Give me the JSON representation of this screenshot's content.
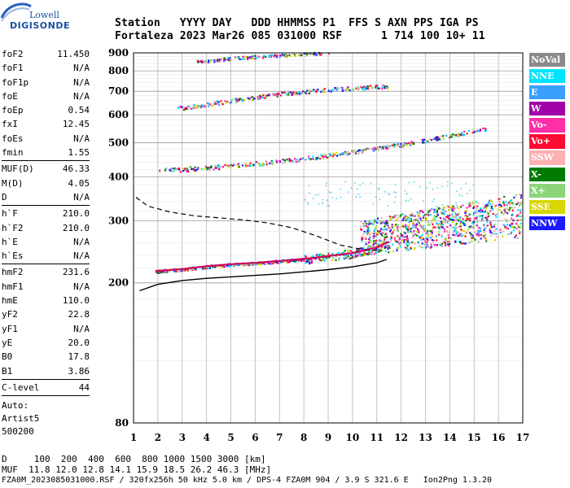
{
  "logo": {
    "brand_top": "Lowell",
    "brand_bottom": "DIGISONDE"
  },
  "header": {
    "line1": "Station   YYYY DAY   DDD HHMMSS P1  FFS S AXN PPS IGA PS",
    "line2": "Fortaleza 2023 Mar26 085 031000 RSF      1 714 100 10+ 11"
  },
  "params": [
    {
      "k": "foF2",
      "v": "11.450"
    },
    {
      "k": "foF1",
      "v": "N/A"
    },
    {
      "k": "foF1p",
      "v": "N/A"
    },
    {
      "k": "foE",
      "v": "N/A"
    },
    {
      "k": "foEp",
      "v": "0.54"
    },
    {
      "k": "fxI",
      "v": "12.45"
    },
    {
      "k": "foEs",
      "v": "N/A"
    },
    {
      "k": "fmin",
      "v": "1.55"
    }
  ],
  "params2": [
    {
      "k": "MUF(D)",
      "v": "46.33"
    },
    {
      "k": "M(D)",
      "v": "4.05"
    },
    {
      "k": "D",
      "v": "N/A"
    }
  ],
  "params3": [
    {
      "k": "h`F",
      "v": "210.0"
    },
    {
      "k": "h`F2",
      "v": "210.0"
    },
    {
      "k": "h`E",
      "v": "N/A"
    },
    {
      "k": "h`Es",
      "v": "N/A"
    }
  ],
  "params4": [
    {
      "k": "hmF2",
      "v": "231.6"
    },
    {
      "k": "hmF1",
      "v": "N/A"
    },
    {
      "k": "hmE",
      "v": "110.0"
    },
    {
      "k": "yF2",
      "v": "22.8"
    },
    {
      "k": "yF1",
      "v": "N/A"
    },
    {
      "k": "yE",
      "v": "20.0"
    },
    {
      "k": "B0",
      "v": "17.8"
    },
    {
      "k": "B1",
      "v": "3.86"
    }
  ],
  "params5": [
    {
      "k": "C-level",
      "v": "44"
    }
  ],
  "auto": [
    "Auto:",
    "Artist5",
    "500200"
  ],
  "legend": [
    {
      "label": "NoVal",
      "bg": "#8a8a8a",
      "fg": "#ffffff"
    },
    {
      "label": "NNE",
      "bg": "#00e5ff",
      "fg": "#ffffff"
    },
    {
      "label": "E",
      "bg": "#3aa0ff",
      "fg": "#ffffff"
    },
    {
      "label": "W",
      "bg": "#a000a8",
      "fg": "#ffffff"
    },
    {
      "label": "Vo-",
      "bg": "#ff2fa8",
      "fg": "#ffffff"
    },
    {
      "label": "Vo+",
      "bg": "#ff0a32",
      "fg": "#ffffff"
    },
    {
      "label": "SSW",
      "bg": "#ffb0b0",
      "fg": "#ffffff"
    },
    {
      "label": "X-",
      "bg": "#007a00",
      "fg": "#ffffff"
    },
    {
      "label": "X+",
      "bg": "#8cd47a",
      "fg": "#ffffff"
    },
    {
      "label": "SSE",
      "bg": "#d8d800",
      "fg": "#ffffff"
    },
    {
      "label": "NNW",
      "bg": "#1a1aff",
      "fg": "#ffffff"
    }
  ],
  "footer": {
    "line1": "D     100  200  400  600  800 1000 1500 3000 [km]",
    "line2": "MUF  11.8 12.0 12.8 14.1 15.9 18.5 26.2 46.3 [MHz]",
    "line3": "FZA0M_2023085031000.RSF / 320fx256h 50 kHz 5.0 km / DPS-4 FZA0M 904 / 3.9 S 321.6 E   Ion2Png 1.3.20"
  },
  "chart_data": {
    "type": "scatter",
    "xlim": [
      1,
      17
    ],
    "ylim": [
      80,
      900
    ],
    "y_scale": "log",
    "x_ticks": [
      1,
      2,
      3,
      4,
      5,
      6,
      7,
      8,
      9,
      10,
      11,
      12,
      13,
      14,
      15,
      16,
      17
    ],
    "y_ticks": [
      80,
      200,
      300,
      400,
      500,
      600,
      700,
      800,
      900
    ],
    "grid": true,
    "traces": [
      {
        "name": "O-trace F2",
        "points": [
          [
            1.9,
            216
          ],
          [
            3,
            219
          ],
          [
            4,
            223
          ],
          [
            5,
            226
          ],
          [
            6,
            228
          ],
          [
            7,
            231
          ],
          [
            8,
            234
          ],
          [
            9,
            238
          ],
          [
            10,
            243
          ],
          [
            11,
            252
          ],
          [
            11.5,
            262
          ]
        ]
      },
      {
        "name": "2-hop echo",
        "points": [
          [
            2,
            418
          ],
          [
            4,
            426
          ],
          [
            6,
            437
          ],
          [
            8,
            452
          ],
          [
            10,
            472
          ],
          [
            12,
            495
          ],
          [
            14,
            525
          ],
          [
            15.5,
            550
          ]
        ]
      },
      {
        "name": "3-hop echo",
        "points": [
          [
            2.8,
            628
          ],
          [
            4,
            645
          ],
          [
            5.5,
            668
          ],
          [
            7,
            690
          ],
          [
            8.5,
            705
          ],
          [
            10,
            718
          ],
          [
            11.5,
            725
          ]
        ]
      },
      {
        "name": "4-hop echo",
        "points": [
          [
            3.5,
            850
          ],
          [
            5,
            870
          ],
          [
            6.5,
            885
          ],
          [
            8,
            895
          ],
          [
            9,
            900
          ]
        ]
      }
    ],
    "scatter_region": {
      "x": [
        10.3,
        16.9
      ],
      "y": [
        240,
        380
      ]
    },
    "profile_solid": [
      [
        1.25,
        190
      ],
      [
        2,
        198
      ],
      [
        3,
        203
      ],
      [
        4,
        206
      ],
      [
        5,
        208
      ],
      [
        6,
        210
      ],
      [
        7,
        212
      ],
      [
        8,
        215
      ],
      [
        9,
        218
      ],
      [
        10,
        222
      ],
      [
        11,
        228
      ],
      [
        11.4,
        233
      ]
    ],
    "profile_dashed": [
      [
        1.1,
        350
      ],
      [
        1.6,
        330
      ],
      [
        2.5,
        318
      ],
      [
        3.5,
        310
      ],
      [
        4.5,
        306
      ],
      [
        5.5,
        302
      ],
      [
        6.5,
        296
      ],
      [
        7.5,
        287
      ],
      [
        8.5,
        272
      ],
      [
        9.5,
        256
      ],
      [
        10.5,
        248
      ],
      [
        11.2,
        247
      ]
    ]
  }
}
